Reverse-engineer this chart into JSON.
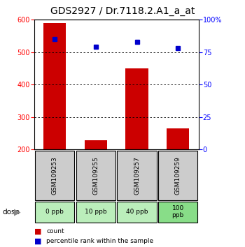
{
  "title": "GDS2927 / Dr.7118.2.A1_a_at",
  "samples": [
    "GSM109253",
    "GSM109255",
    "GSM109257",
    "GSM109259"
  ],
  "doses": [
    "0 ppb",
    "10 ppb",
    "40 ppb",
    "100\nppb"
  ],
  "counts": [
    590,
    228,
    450,
    265
  ],
  "percentiles": [
    85,
    79,
    83,
    78
  ],
  "ylim_left": [
    200,
    600
  ],
  "ylim_right": [
    0,
    100
  ],
  "yticks_left": [
    200,
    300,
    400,
    500,
    600
  ],
  "yticks_right": [
    0,
    25,
    50,
    75,
    100
  ],
  "bar_color": "#cc0000",
  "dot_color": "#0000cc",
  "dose_bg_colors": [
    "#bbeebb",
    "#bbeebb",
    "#bbeebb",
    "#88dd88"
  ],
  "sample_bg_color": "#cccccc",
  "title_fontsize": 10,
  "tick_fontsize": 7,
  "axis_label_fontsize": 7
}
